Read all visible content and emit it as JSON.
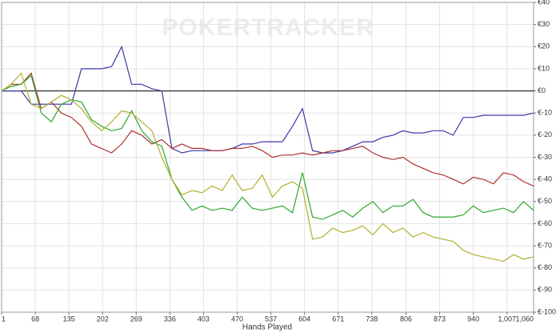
{
  "chart_data": {
    "type": "line",
    "watermark": "POKERTRACKER",
    "xlabel": "Hands Played",
    "x": [
      1,
      20,
      40,
      60,
      80,
      100,
      120,
      140,
      160,
      180,
      200,
      220,
      240,
      260,
      280,
      300,
      320,
      340,
      360,
      380,
      400,
      420,
      440,
      460,
      480,
      500,
      520,
      540,
      560,
      580,
      600,
      620,
      640,
      660,
      680,
      700,
      720,
      740,
      760,
      780,
      800,
      820,
      840,
      860,
      880,
      900,
      920,
      940,
      960,
      980,
      1000,
      1020,
      1040,
      1060
    ],
    "series": [
      {
        "color": "#3a3aa8",
        "values": [
          0,
          0,
          0,
          -6,
          -6,
          -6,
          -6,
          -6,
          10,
          10,
          10,
          11,
          20,
          3,
          3,
          1,
          0,
          -26,
          -28,
          -27,
          -27,
          -27,
          -27,
          -26,
          -24,
          -24,
          -23,
          -23,
          -23,
          -16,
          -8,
          -27,
          -28,
          -28,
          -27,
          -25,
          -23,
          -23,
          -21,
          -20,
          -18,
          -19,
          -19,
          -18,
          -18,
          -20,
          -12,
          -12,
          -11,
          -11,
          -11,
          -11,
          -11,
          -10
        ]
      },
      {
        "color": "#b03030",
        "values": [
          0,
          3,
          3,
          8,
          -8,
          -5,
          -10,
          -12,
          -16,
          -24,
          -26,
          -28,
          -24,
          -18,
          -20,
          -24,
          -22,
          -26,
          -24,
          -26,
          -26,
          -27,
          -27,
          -26,
          -26,
          -25,
          -27,
          -30,
          -29,
          -29,
          -28,
          -29,
          -28,
          -27,
          -27,
          -26,
          -25,
          -28,
          -30,
          -31,
          -30,
          -33,
          -35,
          -37,
          -38,
          -40,
          -42,
          -39,
          -40,
          -42,
          -37,
          -38,
          -41,
          -43
        ]
      },
      {
        "color": "#2ea82e",
        "values": [
          0,
          2,
          3,
          7,
          -10,
          -14,
          -6,
          -4,
          -5,
          -13,
          -16,
          -18,
          -17,
          -9,
          -18,
          -23,
          -25,
          -40,
          -48,
          -54,
          -52,
          -54,
          -53,
          -54,
          -48,
          -53,
          -54,
          -53,
          -52,
          -55,
          -37,
          -57,
          -58,
          -56,
          -54,
          -57,
          -53,
          -50,
          -55,
          -52,
          -52,
          -49,
          -55,
          -57,
          -57,
          -57,
          -56,
          -52,
          -55,
          -54,
          -53,
          -55,
          -50,
          -54
        ]
      },
      {
        "color": "#b0b030",
        "values": [
          0,
          3,
          8,
          -6,
          -8,
          -5,
          -2,
          -4,
          -8,
          -14,
          -18,
          -14,
          -9,
          -10,
          -14,
          -18,
          -30,
          -40,
          -47,
          -45,
          -46,
          -43,
          -45,
          -38,
          -45,
          -44,
          -38,
          -48,
          -43,
          -41,
          -44,
          -67,
          -66,
          -62,
          -64,
          -63,
          -61,
          -65,
          -60,
          -64,
          -62,
          -66,
          -64,
          -66,
          -67,
          -68,
          -72,
          -74,
          -75,
          -76,
          -77,
          -74,
          -76,
          -75
        ]
      }
    ],
    "xlim": [
      1,
      1060
    ],
    "xticks": [
      1,
      68,
      135,
      202,
      269,
      336,
      403,
      470,
      537,
      604,
      671,
      738,
      806,
      873,
      940,
      {
        "value": 1007,
        "label": "1,007"
      },
      {
        "value": 1060,
        "label": "1,060"
      }
    ],
    "ylim": [
      -100,
      40
    ],
    "yticks": [
      {
        "value": 40,
        "label": "€40"
      },
      {
        "value": 30,
        "label": "€30"
      },
      {
        "value": 20,
        "label": "€20"
      },
      {
        "value": 10,
        "label": "€10"
      },
      {
        "value": 0,
        "label": "€0"
      },
      {
        "value": -10,
        "label": "€-10"
      },
      {
        "value": -20,
        "label": "€-20"
      },
      {
        "value": -30,
        "label": "€-30"
      },
      {
        "value": -40,
        "label": "€-40"
      },
      {
        "value": -50,
        "label": "€-50"
      },
      {
        "value": -60,
        "label": "€-60"
      },
      {
        "value": -70,
        "label": "€-70"
      },
      {
        "value": -80,
        "label": "€-80"
      },
      {
        "value": -90,
        "label": "€-90"
      },
      {
        "value": -100,
        "label": "€-100"
      }
    ],
    "grid": true,
    "hline": 0
  }
}
